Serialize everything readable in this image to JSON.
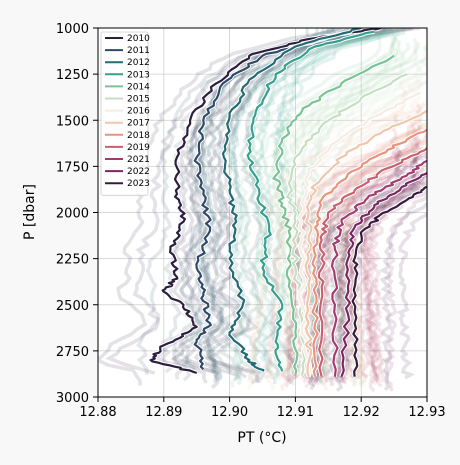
{
  "chart_data": {
    "type": "line",
    "xlabel": "PT (°C)",
    "ylabel": "P [dbar]",
    "xlim": [
      12.88,
      12.93
    ],
    "ylim": [
      3000,
      1000
    ],
    "y_inverted": true,
    "x_ticks": [
      "12.88",
      "12.89",
      "12.90",
      "12.91",
      "12.92",
      "12.93"
    ],
    "x_tick_values": [
      12.88,
      12.89,
      12.9,
      12.91,
      12.92,
      12.93
    ],
    "y_ticks": [
      "1000",
      "1250",
      "1500",
      "1750",
      "2000",
      "2250",
      "2500",
      "2750",
      "3000"
    ],
    "y_tick_values": [
      1000,
      1250,
      1500,
      1750,
      2000,
      2250,
      2500,
      2750,
      3000
    ],
    "grid": true,
    "legend_position": "top-left",
    "series": [
      {
        "name": "2010",
        "color": "#2b1e3e",
        "points": [
          [
            12.923,
            1000
          ],
          [
            12.912,
            1060
          ],
          [
            12.903,
            1150
          ],
          [
            12.898,
            1300
          ],
          [
            12.894,
            1500
          ],
          [
            12.892,
            1700
          ],
          [
            12.892,
            1900
          ],
          [
            12.893,
            2050
          ],
          [
            12.891,
            2200
          ],
          [
            12.892,
            2350
          ],
          [
            12.89,
            2430
          ],
          [
            12.893,
            2500
          ],
          [
            12.895,
            2620
          ],
          [
            12.89,
            2720
          ],
          [
            12.888,
            2800
          ],
          [
            12.895,
            2870
          ]
        ]
      },
      {
        "name": "2011",
        "color": "#2e4a67",
        "points": [
          [
            12.915,
            1050
          ],
          [
            12.905,
            1150
          ],
          [
            12.899,
            1300
          ],
          [
            12.896,
            1500
          ],
          [
            12.895,
            1700
          ],
          [
            12.896,
            1900
          ],
          [
            12.897,
            2100
          ],
          [
            12.895,
            2300
          ],
          [
            12.896,
            2450
          ],
          [
            12.897,
            2600
          ],
          [
            12.895,
            2700
          ],
          [
            12.896,
            2850
          ]
        ]
      },
      {
        "name": "2012",
        "color": "#236a74",
        "points": [
          [
            12.92,
            1000
          ],
          [
            12.91,
            1100
          ],
          [
            12.903,
            1280
          ],
          [
            12.9,
            1480
          ],
          [
            12.899,
            1680
          ],
          [
            12.9,
            1880
          ],
          [
            12.901,
            2050
          ],
          [
            12.9,
            2250
          ],
          [
            12.902,
            2500
          ],
          [
            12.9,
            2650
          ],
          [
            12.903,
            2800
          ],
          [
            12.905,
            2860
          ]
        ]
      },
      {
        "name": "2013",
        "color": "#34a08d",
        "points": [
          [
            12.922,
            1020
          ],
          [
            12.913,
            1100
          ],
          [
            12.907,
            1250
          ],
          [
            12.904,
            1450
          ],
          [
            12.903,
            1650
          ],
          [
            12.904,
            1850
          ],
          [
            12.906,
            2100
          ],
          [
            12.905,
            2300
          ],
          [
            12.908,
            2500
          ],
          [
            12.907,
            2700
          ],
          [
            12.908,
            2860
          ]
        ]
      },
      {
        "name": "2014",
        "color": "#7ac394",
        "points": [
          [
            12.925,
            1150
          ],
          [
            12.917,
            1300
          ],
          [
            12.911,
            1450
          ],
          [
            12.908,
            1600
          ],
          [
            12.907,
            1800
          ],
          [
            12.908,
            1950
          ],
          [
            12.909,
            2100
          ],
          [
            12.909,
            2400
          ],
          [
            12.91,
            2650
          ],
          [
            12.91,
            2880
          ]
        ]
      },
      {
        "name": "2015",
        "color": "#c5dfc1",
        "points": [
          [
            12.927,
            1250
          ],
          [
            12.92,
            1380
          ],
          [
            12.914,
            1530
          ],
          [
            12.91,
            1700
          ],
          [
            12.909,
            1900
          ],
          [
            12.91,
            2050
          ],
          [
            12.91,
            2300
          ],
          [
            12.911,
            2600
          ],
          [
            12.911,
            2880
          ]
        ]
      },
      {
        "name": "2016",
        "color": "#f5ede4",
        "points": [
          [
            12.929,
            1350
          ],
          [
            12.922,
            1480
          ],
          [
            12.916,
            1620
          ],
          [
            12.912,
            1780
          ],
          [
            12.911,
            1950
          ],
          [
            12.911,
            2150
          ],
          [
            12.911,
            2500
          ],
          [
            12.912,
            2890
          ]
        ]
      },
      {
        "name": "2017",
        "color": "#f1c6ab",
        "points": [
          [
            12.93,
            1450
          ],
          [
            12.923,
            1570
          ],
          [
            12.917,
            1700
          ],
          [
            12.913,
            1850
          ],
          [
            12.912,
            2000
          ],
          [
            12.912,
            2250
          ],
          [
            12.912,
            2600
          ],
          [
            12.912,
            2890
          ]
        ]
      },
      {
        "name": "2018",
        "color": "#e8937c",
        "points": [
          [
            12.93,
            1550
          ],
          [
            12.924,
            1660
          ],
          [
            12.918,
            1790
          ],
          [
            12.914,
            1930
          ],
          [
            12.913,
            2080
          ],
          [
            12.913,
            2300
          ],
          [
            12.913,
            2600
          ],
          [
            12.913,
            2890
          ]
        ]
      },
      {
        "name": "2019",
        "color": "#c9606e",
        "points": [
          [
            12.93,
            1650
          ],
          [
            12.924,
            1760
          ],
          [
            12.919,
            1880
          ],
          [
            12.915,
            2000
          ],
          [
            12.914,
            2150
          ],
          [
            12.914,
            2400
          ],
          [
            12.914,
            2890
          ]
        ]
      },
      {
        "name": "2021",
        "color": "#a33c6e",
        "points": [
          [
            12.93,
            1720
          ],
          [
            12.926,
            1820
          ],
          [
            12.921,
            1920
          ],
          [
            12.917,
            2050
          ],
          [
            12.916,
            2200
          ],
          [
            12.916,
            2500
          ],
          [
            12.916,
            2890
          ]
        ]
      },
      {
        "name": "2022",
        "color": "#7a2762",
        "points": [
          [
            12.93,
            1780
          ],
          [
            12.926,
            1870
          ],
          [
            12.922,
            1960
          ],
          [
            12.919,
            2080
          ],
          [
            12.918,
            2250
          ],
          [
            12.918,
            2550
          ],
          [
            12.917,
            2890
          ]
        ]
      },
      {
        "name": "2023",
        "color": "#3a1a3f",
        "points": [
          [
            12.93,
            1860
          ],
          [
            12.927,
            1930
          ],
          [
            12.923,
            2010
          ],
          [
            12.92,
            2120
          ],
          [
            12.919,
            2300
          ],
          [
            12.919,
            2600
          ],
          [
            12.919,
            2890
          ]
        ]
      }
    ]
  }
}
